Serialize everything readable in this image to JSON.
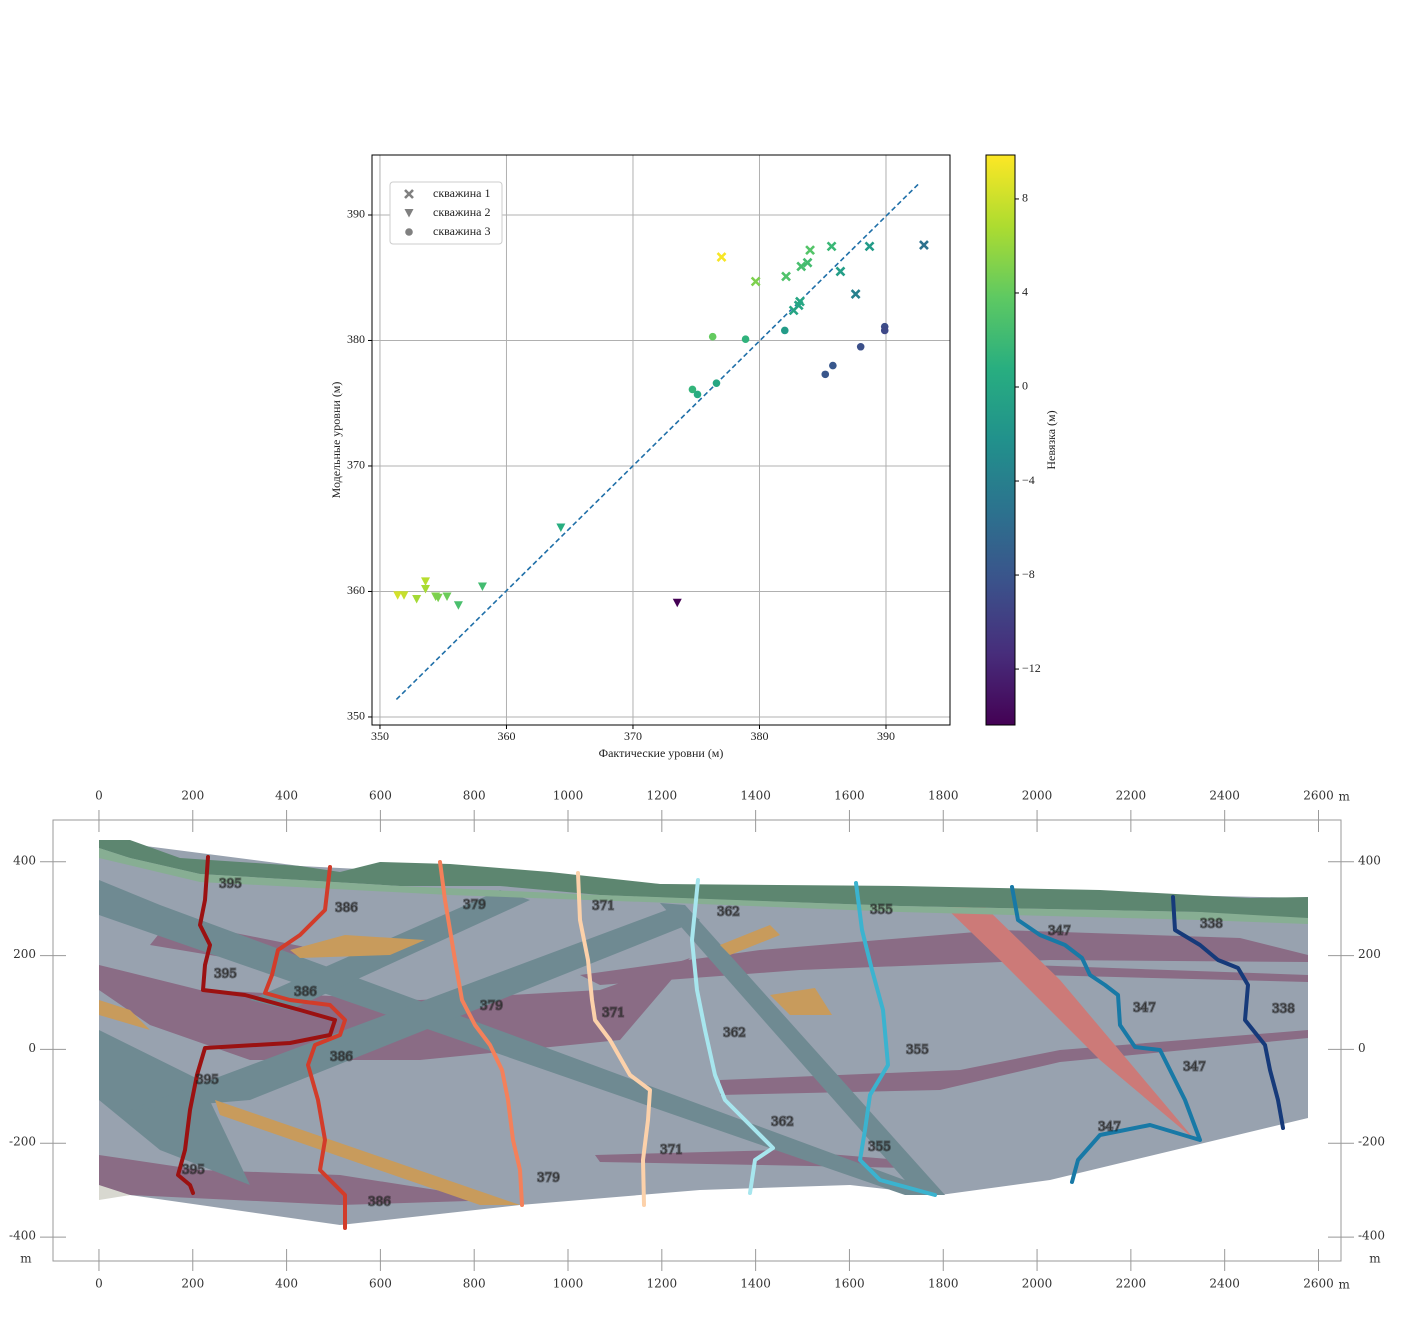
{
  "chart_data": [
    {
      "type": "scatter",
      "xlabel": "Фактические уровни (м)",
      "ylabel": "Модельные уровни (м)",
      "xlim": [
        349.37,
        395.06
      ],
      "ylim": [
        349.36,
        394.78
      ],
      "xticks": [
        350,
        360,
        370,
        380,
        390
      ],
      "yticks": [
        350,
        360,
        370,
        380,
        390
      ],
      "grid": true,
      "legend": "upper left",
      "series": [
        {
          "name": "скважина 1",
          "marker": "x",
          "x": [
            377.0,
            379.7,
            382.1,
            383.3,
            383.8,
            384.0,
            385.7,
            386.4,
            387.6,
            388.7,
            393.0,
            382.7,
            383.1,
            383.2
          ],
          "y": [
            386.65,
            384.7,
            385.1,
            385.9,
            386.2,
            387.2,
            387.5,
            385.5,
            383.7,
            387.5,
            387.6,
            382.4,
            382.8,
            383.1
          ]
        },
        {
          "name": "скважина 2",
          "marker": "v",
          "x": [
            351.4,
            351.9,
            352.9,
            353.6,
            353.6,
            354.4,
            354.6,
            355.3,
            356.2,
            358.1,
            364.3,
            373.5
          ],
          "y": [
            359.7,
            359.7,
            359.4,
            360.8,
            360.2,
            359.6,
            359.5,
            359.6,
            358.9,
            360.4,
            365.1,
            359.1
          ]
        },
        {
          "name": "скважина 3",
          "marker": "o",
          "x": [
            376.3,
            378.9,
            382.0,
            374.7,
            375.1,
            376.6,
            385.8,
            385.2,
            388.0,
            389.9,
            389.9
          ],
          "y": [
            380.3,
            380.1,
            380.8,
            376.1,
            375.7,
            376.6,
            378.0,
            377.3,
            379.5,
            381.1,
            380.8
          ]
        }
      ],
      "reference_line": {
        "x": [
          351.3,
          392.7
        ],
        "y": [
          351.4,
          392.6
        ],
        "color": "#1f6fa8"
      },
      "colorbar": {
        "label": "Невязка (м)",
        "clim": [
          -14.38,
          9.87
        ],
        "colormap": "viridis",
        "ticks": [
          {
            "value": -12,
            "label": "−12"
          },
          {
            "value": -8,
            "label": "−8"
          },
          {
            "value": -4,
            "label": "−4"
          },
          0,
          4,
          8
        ]
      }
    },
    {
      "type": "cross-section",
      "unit": "m",
      "xlim": [
        -98,
        2648
      ],
      "ylim": [
        -451,
        489
      ],
      "xticks": [
        0,
        200,
        400,
        600,
        800,
        1000,
        1200,
        1400,
        1600,
        1800,
        2000,
        2200,
        2400,
        2600
      ],
      "yticks": [
        -400,
        -200,
        0,
        200,
        400
      ],
      "wells": [
        {
          "label": "395",
          "color": "#9b1111"
        },
        {
          "label": "386",
          "color": "#d23c2a"
        },
        {
          "label": "379",
          "color": "#f4805a"
        },
        {
          "label": "371",
          "color": "#fcd1aa"
        },
        {
          "label": "362",
          "color": "#a7e6ee"
        },
        {
          "label": "355",
          "color": "#3bb3cf"
        },
        {
          "label": "347",
          "color": "#1879a6"
        },
        {
          "label": "338",
          "color": "#163a7a"
        }
      ]
    }
  ]
}
